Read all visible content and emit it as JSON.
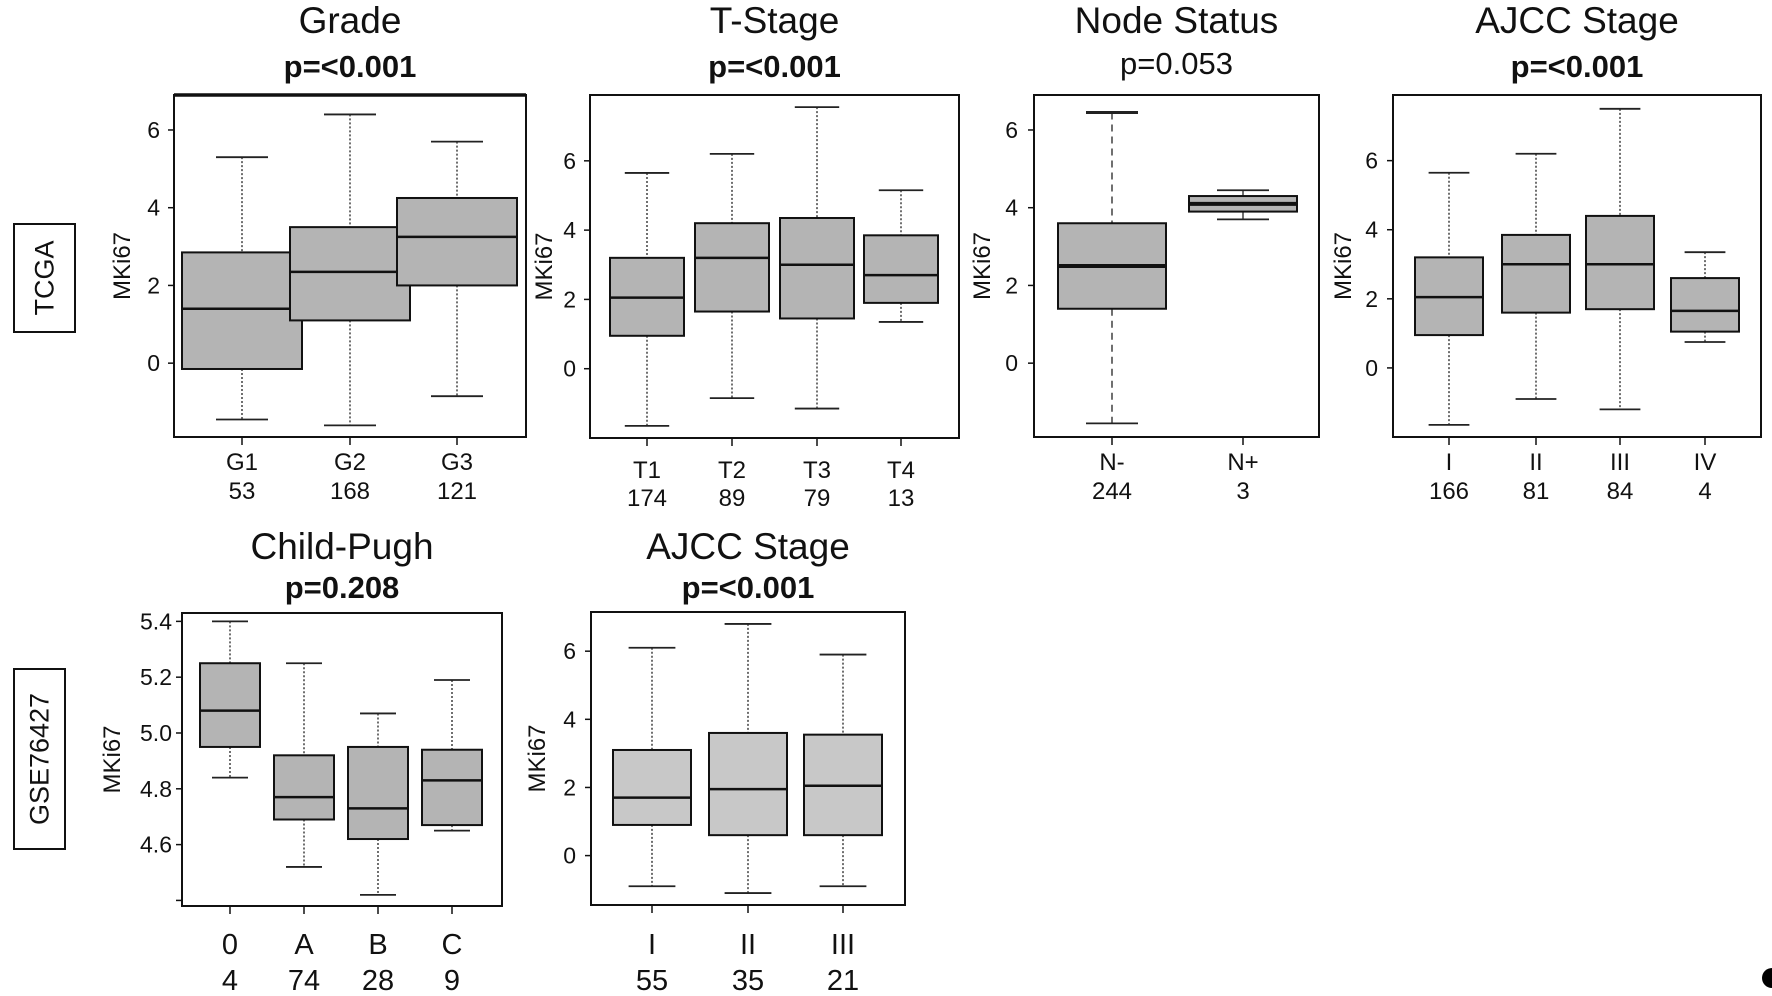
{
  "figure": {
    "row_labels": [
      "TCGA",
      "GSE76427"
    ]
  },
  "chart_data": [
    {
      "type": "box",
      "dataset": "TCGA",
      "title": "Grade",
      "pvalue": "p=<0.001",
      "pvalue_bold": true,
      "ylabel": "MKi67",
      "xlabel": "",
      "yticks": [
        0,
        2,
        4,
        6
      ],
      "ytick_labels": [
        "0",
        "2",
        "4",
        "6"
      ],
      "ylim": [
        -1.9,
        6.9
      ],
      "fill": "#b4b4b4",
      "categories": [
        "G1",
        "G2",
        "G3"
      ],
      "counts": [
        "53",
        "168",
        "121"
      ],
      "boxes": [
        {
          "whisker_low": -1.45,
          "q1": -0.15,
          "median": 1.4,
          "q3": 2.85,
          "whisker_high": 5.3
        },
        {
          "whisker_low": -1.6,
          "q1": 1.1,
          "median": 2.35,
          "q3": 3.5,
          "whisker_high": 6.4
        },
        {
          "whisker_low": -0.85,
          "q1": 2.0,
          "median": 3.25,
          "q3": 4.25,
          "whisker_high": 5.7
        }
      ]
    },
    {
      "type": "box",
      "dataset": "TCGA",
      "title": "T-Stage",
      "pvalue": "p=<0.001",
      "pvalue_bold": true,
      "ylabel": "MKi67",
      "xlabel": "",
      "yticks": [
        0,
        2,
        4,
        6
      ],
      "ytick_labels": [
        "0",
        "2",
        "4",
        "6"
      ],
      "ylim": [
        -2.0,
        7.9
      ],
      "fill": "#b4b4b4",
      "categories": [
        "T1",
        "T2",
        "T3",
        "T4"
      ],
      "counts": [
        "174",
        "89",
        "79",
        "13"
      ],
      "boxes": [
        {
          "whisker_low": -1.65,
          "q1": 0.95,
          "median": 2.05,
          "q3": 3.2,
          "whisker_high": 5.65
        },
        {
          "whisker_low": -0.85,
          "q1": 1.65,
          "median": 3.2,
          "q3": 4.2,
          "whisker_high": 6.2
        },
        {
          "whisker_low": -1.15,
          "q1": 1.45,
          "median": 3.0,
          "q3": 4.35,
          "whisker_high": 7.55
        },
        {
          "whisker_low": 1.35,
          "q1": 1.9,
          "median": 2.7,
          "q3": 3.85,
          "whisker_high": 5.15
        }
      ]
    },
    {
      "type": "box",
      "dataset": "TCGA",
      "title": "Node Status",
      "pvalue": "p=0.053",
      "pvalue_bold": false,
      "ylabel": "MKi67",
      "xlabel": "",
      "yticks": [
        0,
        2,
        4,
        6
      ],
      "ytick_labels": [
        "0",
        "2",
        "4",
        "6"
      ],
      "ylim": [
        -1.9,
        6.9
      ],
      "fill": "#b4b4b4",
      "categories": [
        "N-",
        "N+"
      ],
      "counts": [
        "244",
        "3"
      ],
      "boxes": [
        {
          "whisker_low": -1.55,
          "q1": 1.4,
          "median": 2.5,
          "q3": 3.6,
          "whisker_high": 6.45
        },
        {
          "whisker_low": 3.7,
          "q1": 3.9,
          "median": 4.1,
          "q3": 4.3,
          "whisker_high": 4.45
        }
      ]
    },
    {
      "type": "box",
      "dataset": "TCGA",
      "title": "AJCC Stage",
      "pvalue": "p=<0.001",
      "pvalue_bold": true,
      "ylabel": "MKi67",
      "xlabel": "",
      "yticks": [
        0,
        2,
        4,
        6
      ],
      "ytick_labels": [
        "0",
        "2",
        "4",
        "6"
      ],
      "ylim": [
        -2.0,
        7.9
      ],
      "fill": "#b4b4b4",
      "categories": [
        "I",
        "II",
        "III",
        "IV"
      ],
      "counts": [
        "166",
        "81",
        "84",
        "4"
      ],
      "boxes": [
        {
          "whisker_low": -1.65,
          "q1": 0.95,
          "median": 2.05,
          "q3": 3.2,
          "whisker_high": 5.65
        },
        {
          "whisker_low": -0.9,
          "q1": 1.6,
          "median": 3.0,
          "q3": 3.85,
          "whisker_high": 6.2
        },
        {
          "whisker_low": -1.2,
          "q1": 1.7,
          "median": 3.0,
          "q3": 4.4,
          "whisker_high": 7.5
        },
        {
          "whisker_low": 0.75,
          "q1": 1.05,
          "median": 1.65,
          "q3": 2.6,
          "whisker_high": 3.35
        }
      ]
    },
    {
      "type": "box",
      "dataset": "GSE76427",
      "title": "Child-Pugh",
      "pvalue": "p=0.208",
      "pvalue_bold": true,
      "ylabel": "MKi67",
      "xlabel": "",
      "yticks": [
        4.4,
        4.6,
        4.8,
        5.0,
        5.2,
        5.4
      ],
      "ytick_labels": [
        "",
        "4.6",
        "4.8",
        "5.0",
        "5.2",
        "5.4"
      ],
      "ylim": [
        4.38,
        5.43
      ],
      "fill": "#b4b4b4",
      "categories": [
        "0",
        "A",
        "B",
        "C"
      ],
      "counts": [
        "4",
        "74",
        "28",
        "9"
      ],
      "boxes": [
        {
          "whisker_low": 4.84,
          "q1": 4.95,
          "median": 5.08,
          "q3": 5.25,
          "whisker_high": 5.4
        },
        {
          "whisker_low": 4.52,
          "q1": 4.69,
          "median": 4.77,
          "q3": 4.92,
          "whisker_high": 5.25
        },
        {
          "whisker_low": 4.42,
          "q1": 4.62,
          "median": 4.73,
          "q3": 4.95,
          "whisker_high": 5.07
        },
        {
          "whisker_low": 4.65,
          "q1": 4.67,
          "median": 4.83,
          "q3": 4.94,
          "whisker_high": 5.19
        }
      ]
    },
    {
      "type": "box",
      "dataset": "GSE76427",
      "title": "AJCC Stage",
      "pvalue": "p=<0.001",
      "pvalue_bold": true,
      "ylabel": "MKi67",
      "xlabel": "",
      "yticks": [
        0,
        2,
        4,
        6
      ],
      "ytick_labels": [
        "0",
        "2",
        "4",
        "6"
      ],
      "ylim": [
        -1.45,
        7.15
      ],
      "fill": "#c8c8c8",
      "categories": [
        "I",
        "II",
        "III"
      ],
      "counts": [
        "55",
        "35",
        "21"
      ],
      "boxes": [
        {
          "whisker_low": -0.9,
          "q1": 0.9,
          "median": 1.7,
          "q3": 3.1,
          "whisker_high": 6.1
        },
        {
          "whisker_low": -1.1,
          "q1": 0.6,
          "median": 1.95,
          "q3": 3.6,
          "whisker_high": 6.8
        },
        {
          "whisker_low": -0.9,
          "q1": 0.6,
          "median": 2.05,
          "q3": 3.55,
          "whisker_high": 5.9
        }
      ]
    }
  ]
}
